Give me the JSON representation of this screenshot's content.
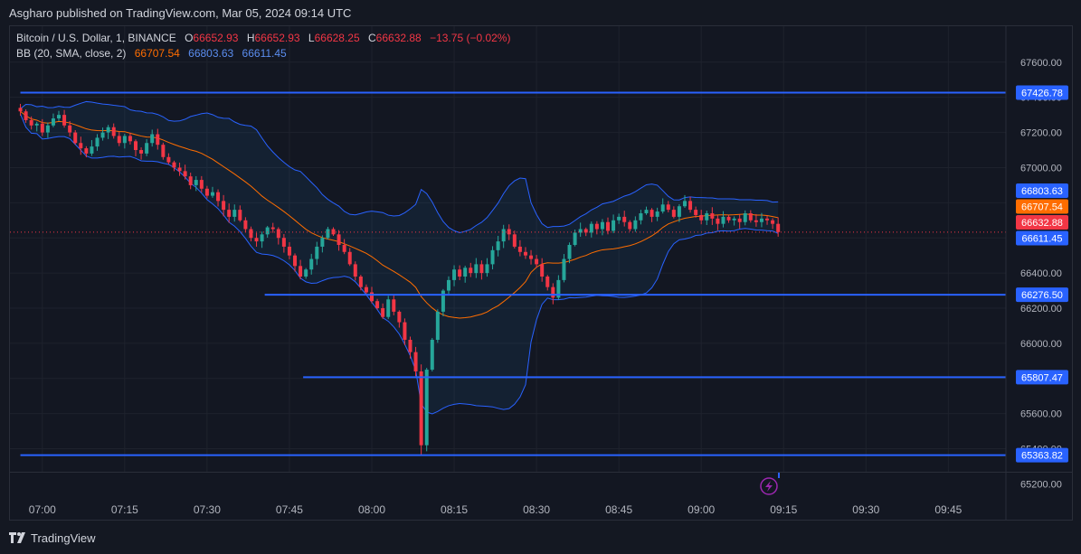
{
  "header": {
    "published": "Asgharo published on TradingView.com, Mar 05, 2024 09:14 UTC"
  },
  "legend": {
    "symbol": "Bitcoin / U.S. Dollar, 1, BINANCE",
    "o_label": "O",
    "o_value": "66652.93",
    "h_label": "H",
    "h_value": "66652.93",
    "l_label": "L",
    "l_value": "66628.25",
    "c_label": "C",
    "c_value": "66632.88",
    "change": "−13.75 (−0.02%)",
    "bb_label": "BB (20, SMA, close, 2)",
    "bb_basis": "66707.54",
    "bb_upper": "66803.63",
    "bb_lower": "66611.45"
  },
  "footer": {
    "brand": "TradingView"
  },
  "colors": {
    "background": "#131722",
    "up": "#26a69a",
    "down": "#f23645",
    "basis": "#ff6d00",
    "band": "#2962ff",
    "hline": "#2962ff",
    "grid": "#1e222d"
  },
  "chart_data": {
    "type": "candlestick",
    "symbol": "BTCUSD",
    "interval": "1m",
    "y_range": [
      65160,
      67690
    ],
    "x_range_minutes": [
      -4,
      108
    ],
    "y_ticks": [
      65200,
      65400,
      65600,
      65800,
      66000,
      66200,
      66400,
      66600,
      66800,
      67000,
      67200,
      67400,
      67600
    ],
    "y_tick_labels": [
      "65200.00",
      "65400.00",
      "65600.00",
      "65800.00",
      "66000.00",
      "66200.00",
      "66400.00",
      "66600.00",
      "66800.00",
      "67000.00",
      "67200.00",
      "67400.00",
      "67600.00"
    ],
    "x_ticks": [
      {
        "minute": 0,
        "label": "07:00"
      },
      {
        "minute": 15,
        "label": "07:15"
      },
      {
        "minute": 30,
        "label": "07:30"
      },
      {
        "minute": 45,
        "label": "07:45"
      },
      {
        "minute": 60,
        "label": "08:00"
      },
      {
        "minute": 75,
        "label": "08:15"
      },
      {
        "minute": 90,
        "label": "08:30"
      },
      {
        "minute": 105,
        "label": "08:45"
      },
      {
        "minute": 120,
        "label": "09:00"
      },
      {
        "minute": 135,
        "label": "09:15"
      },
      {
        "minute": 150,
        "label": "09:30"
      },
      {
        "minute": 165,
        "label": "09:45"
      }
    ],
    "levels": [
      {
        "value": 67426.78,
        "label": "67426.78",
        "from_minute": -4
      },
      {
        "value": 66276.5,
        "label": "66276.50",
        "from_minute": 40.5
      },
      {
        "value": 65807.47,
        "label": "65807.47",
        "from_minute": 47.5
      },
      {
        "value": 65363.82,
        "label": "65363.82",
        "from_minute": -4
      }
    ],
    "price_tags": [
      {
        "value": 66803.63,
        "label": "66803.63",
        "color": "#2962ff"
      },
      {
        "value": 66707.54,
        "label": "66707.54",
        "color": "#ff6d00"
      },
      {
        "value": 66632.88,
        "label": "66632.88",
        "color": "#f23645"
      },
      {
        "value": 66611.45,
        "label": "66611.45",
        "color": "#2962ff"
      }
    ],
    "last_price": 66632.88,
    "closes": [
      67320,
      67270,
      67240,
      67250,
      67200,
      67240,
      67280,
      67300,
      67240,
      67200,
      67140,
      67110,
      67080,
      67120,
      67170,
      67200,
      67230,
      67180,
      67140,
      67180,
      67150,
      67100,
      67080,
      67140,
      67190,
      67130,
      67060,
      67030,
      67000,
      66980,
      66950,
      66900,
      66930,
      66880,
      66840,
      66860,
      66810,
      66760,
      66720,
      66760,
      66700,
      66650,
      66600,
      66580,
      66620,
      66660,
      66650,
      66600,
      66550,
      66500,
      66440,
      66380,
      66420,
      66480,
      66550,
      66600,
      66650,
      66620,
      66560,
      66520,
      66450,
      66380,
      66320,
      66290,
      66240,
      66200,
      66150,
      66250,
      66180,
      66120,
      66020,
      65950,
      65840,
      65420,
      65850,
      66020,
      66180,
      66300,
      66360,
      66420,
      66380,
      66430,
      66400,
      66450,
      66400,
      66450,
      66530,
      66580,
      66650,
      66620,
      66550,
      66520,
      66500,
      66480,
      66450,
      66380,
      66320,
      66260,
      66360,
      66480,
      66560,
      66630,
      66650,
      66630,
      66680,
      66650,
      66690,
      66640,
      66700,
      66720,
      66690,
      66650,
      66700,
      66740,
      66760,
      66720,
      66750,
      66790,
      66760,
      66720,
      66780,
      66810,
      66760,
      66730,
      66700,
      66740,
      66710,
      66680,
      66720,
      66700,
      66710,
      66690,
      66740,
      66700,
      66690,
      66710,
      66700,
      66680,
      66633
    ],
    "bollinger": {
      "period": 20,
      "stddev": 2,
      "basis_last": 66707.54,
      "upper_last": 66803.63,
      "lower_last": 66611.45
    }
  }
}
